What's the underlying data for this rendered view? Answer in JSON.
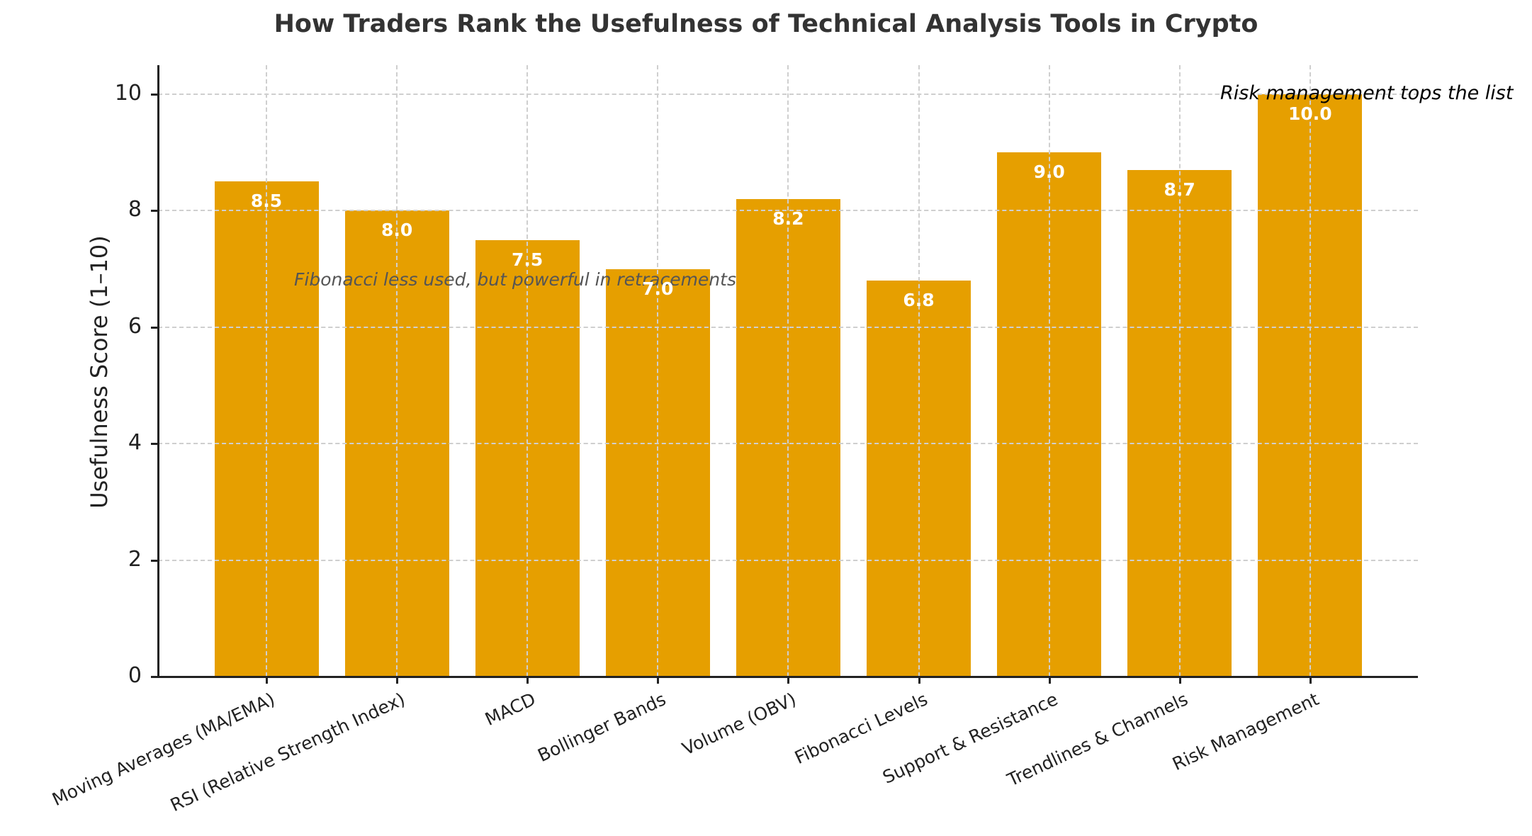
{
  "title": "How Traders Rank the Usefulness of Technical Analysis Tools in Crypto",
  "ylabel": "Usefulness Score (1–10)",
  "yticks": [
    "0",
    "2",
    "4",
    "6",
    "8",
    "10"
  ],
  "annotations": {
    "fibonacci": "Fibonacci less used, but powerful in retracements",
    "risk": "Risk management tops the list"
  },
  "colors": {
    "bar": "#E69F00",
    "bar_label": "#FFFFFF",
    "grid": "#CFCFCF"
  },
  "bars": [
    {
      "label": "Moving Averages (MA/EMA)",
      "value": 8.5,
      "text": "8.5"
    },
    {
      "label": "RSI (Relative Strength Index)",
      "value": 8.0,
      "text": "8.0"
    },
    {
      "label": "MACD",
      "value": 7.5,
      "text": "7.5"
    },
    {
      "label": "Bollinger Bands",
      "value": 7.0,
      "text": "7.0"
    },
    {
      "label": "Volume (OBV)",
      "value": 8.2,
      "text": "8.2"
    },
    {
      "label": "Fibonacci Levels",
      "value": 6.8,
      "text": "6.8"
    },
    {
      "label": "Support & Resistance",
      "value": 9.0,
      "text": "9.0"
    },
    {
      "label": "Trendlines & Channels",
      "value": 8.7,
      "text": "8.7"
    },
    {
      "label": "Risk Management",
      "value": 10.0,
      "text": "10.0"
    }
  ],
  "chart_data": {
    "type": "bar",
    "title": "How Traders Rank the Usefulness of Technical Analysis Tools in Crypto",
    "xlabel": "",
    "ylabel": "Usefulness Score (1–10)",
    "categories": [
      "Moving Averages (MA/EMA)",
      "RSI (Relative Strength Index)",
      "MACD",
      "Bollinger Bands",
      "Volume (OBV)",
      "Fibonacci Levels",
      "Support & Resistance",
      "Trendlines & Channels",
      "Risk Management"
    ],
    "values": [
      8.5,
      8.0,
      7.5,
      7.0,
      8.2,
      6.8,
      9.0,
      8.7,
      10.0
    ],
    "ylim": [
      0,
      10.5
    ],
    "yticks": [
      0,
      2,
      4,
      6,
      8,
      10
    ],
    "grid": true,
    "legend": null,
    "annotations": [
      {
        "text": "Fibonacci less used, but powerful in retracements",
        "style": "italic"
      },
      {
        "text": "Risk management tops the list",
        "style": "italic"
      }
    ]
  }
}
